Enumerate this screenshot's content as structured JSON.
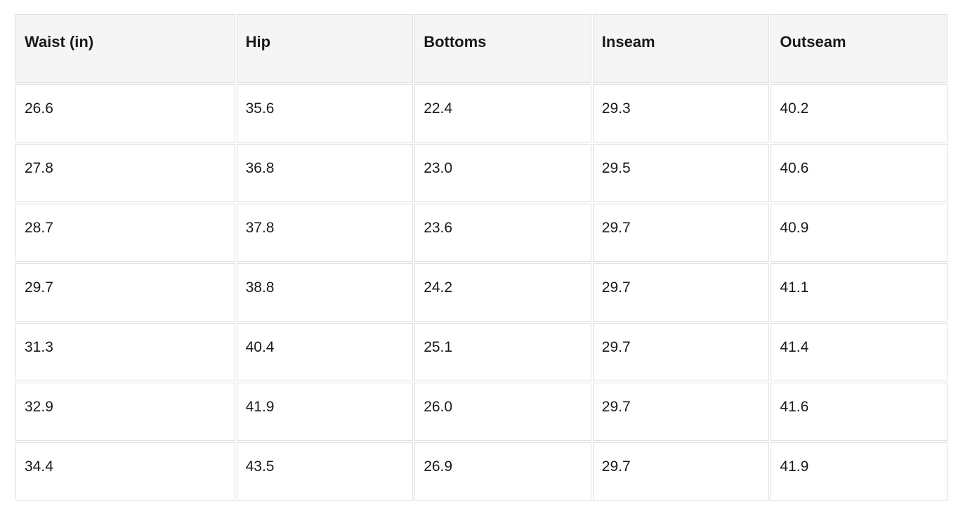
{
  "table": {
    "columns": [
      "Waist (in)",
      "Hip",
      "Bottoms",
      "Inseam",
      "Outseam"
    ],
    "rows": [
      [
        "26.6",
        "35.6",
        "22.4",
        "29.3",
        "40.2"
      ],
      [
        "27.8",
        "36.8",
        "23.0",
        "29.5",
        "40.6"
      ],
      [
        "28.7",
        "37.8",
        "23.6",
        "29.7",
        "40.9"
      ],
      [
        "29.7",
        "38.8",
        "24.2",
        "29.7",
        "41.1"
      ],
      [
        "31.3",
        "40.4",
        "25.1",
        "29.7",
        "41.4"
      ],
      [
        "32.9",
        "41.9",
        "26.0",
        "29.7",
        "41.6"
      ],
      [
        "34.4",
        "43.5",
        "26.9",
        "29.7",
        "41.9"
      ]
    ]
  },
  "chart_data": {
    "type": "table",
    "title": "",
    "columns": [
      "Waist (in)",
      "Hip",
      "Bottoms",
      "Inseam",
      "Outseam"
    ],
    "rows": [
      [
        26.6,
        35.6,
        22.4,
        29.3,
        40.2
      ],
      [
        27.8,
        36.8,
        23.0,
        29.5,
        40.6
      ],
      [
        28.7,
        37.8,
        23.6,
        29.7,
        40.9
      ],
      [
        29.7,
        38.8,
        24.2,
        29.7,
        41.1
      ],
      [
        31.3,
        40.4,
        25.1,
        29.7,
        41.4
      ],
      [
        32.9,
        41.9,
        26.0,
        29.7,
        41.6
      ],
      [
        34.4,
        43.5,
        26.9,
        29.7,
        41.9
      ]
    ]
  },
  "colors": {
    "header_background": "#f5f5f5",
    "cell_border": "#e0e0e0",
    "text": "#1a1a1a",
    "page_background": "#ffffff"
  }
}
